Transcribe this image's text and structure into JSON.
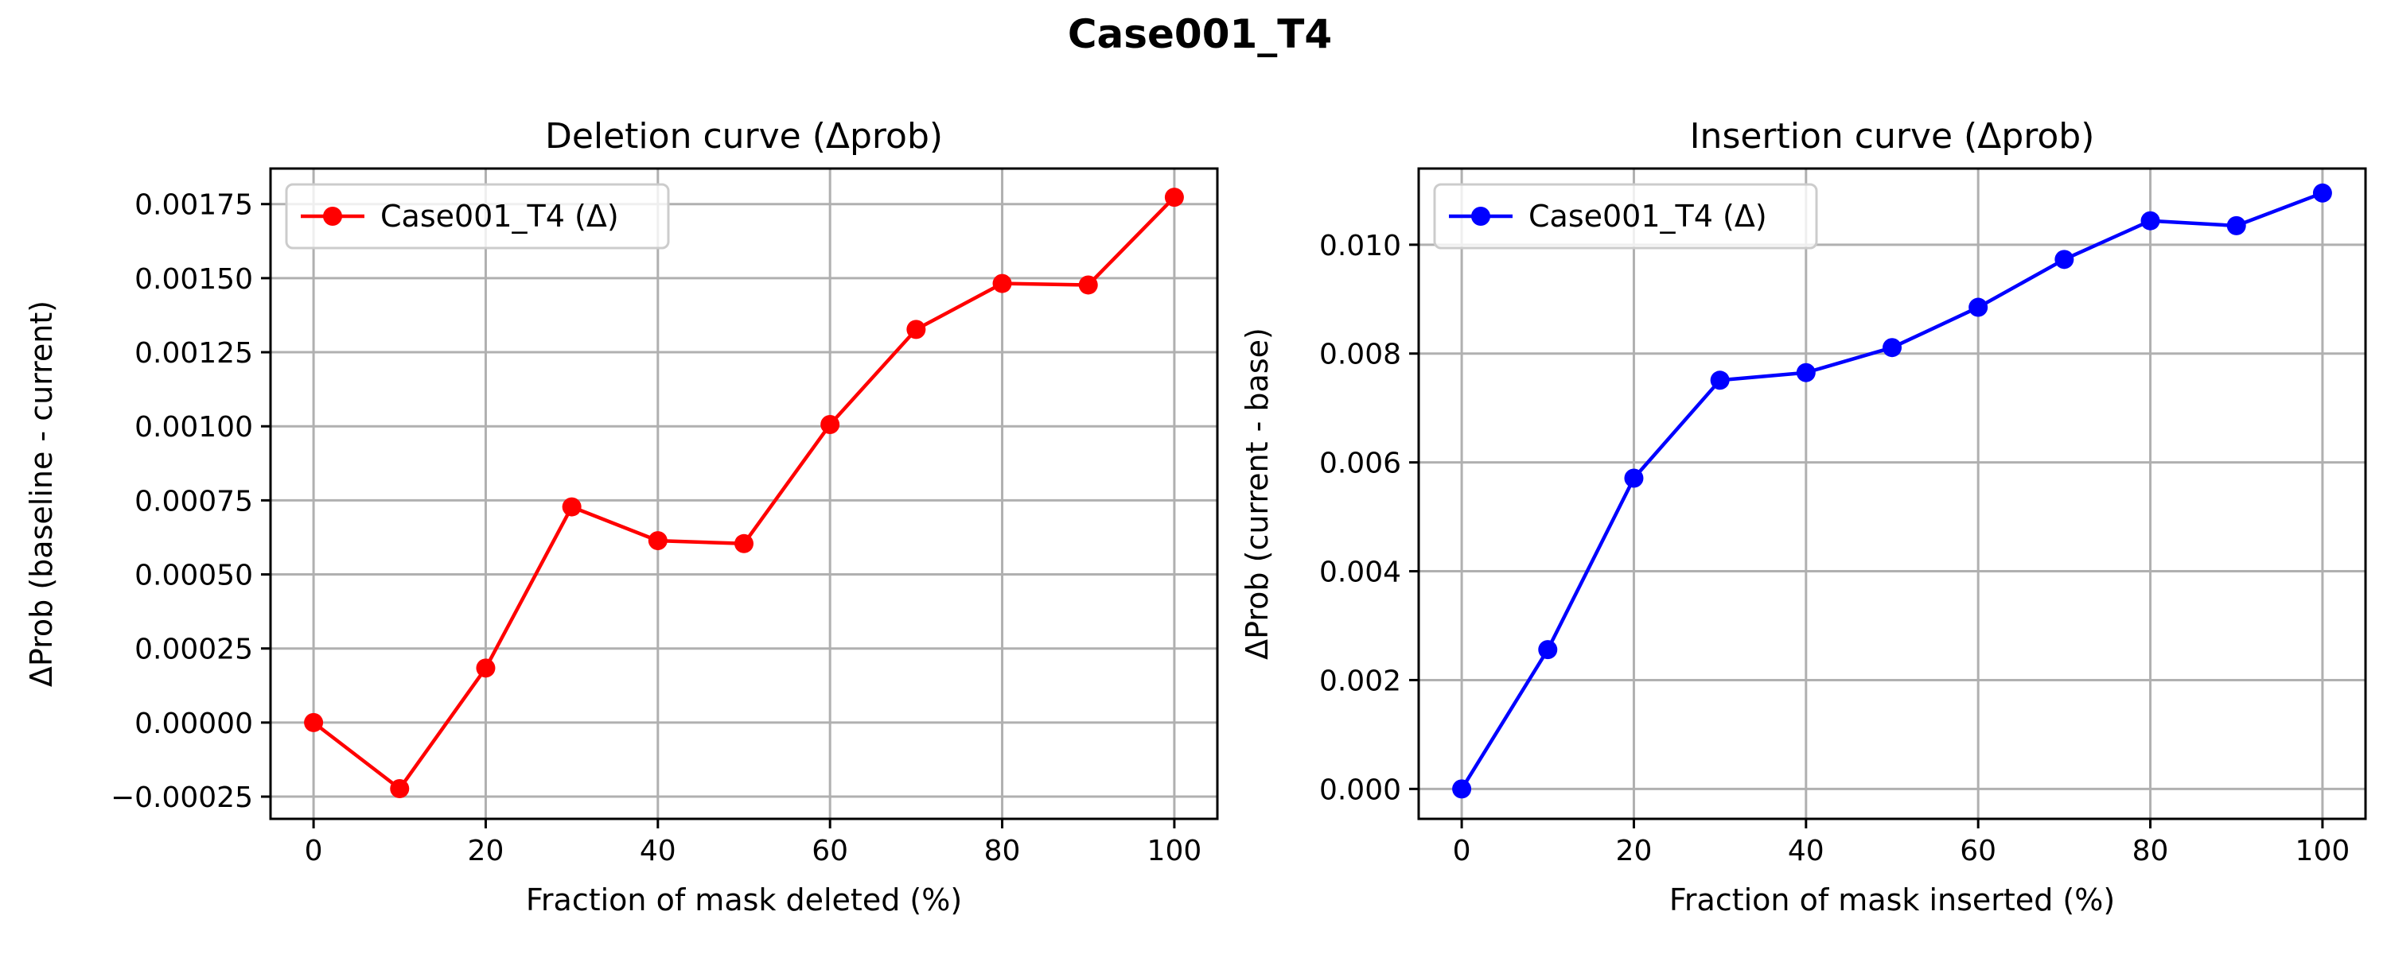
{
  "figure": {
    "title": "Case001_T4"
  },
  "chart_data": [
    {
      "type": "line",
      "title": "Deletion curve (Δprob)",
      "xlabel": "Fraction of mask deleted (%)",
      "ylabel": "ΔProb (baseline - current)",
      "xlim": [
        -5,
        105
      ],
      "ylim": [
        -0.000325,
        0.00187
      ],
      "xticks": [
        0,
        20,
        40,
        60,
        80,
        100
      ],
      "xtick_labels": [
        "0",
        "20",
        "40",
        "60",
        "80",
        "100"
      ],
      "yticks": [
        -0.00025,
        0,
        0.00025,
        0.0005,
        0.00075,
        0.001,
        0.00125,
        0.0015,
        0.00175
      ],
      "ytick_labels": [
        "−0.00025",
        "0.00000",
        "0.00025",
        "0.00050",
        "0.00075",
        "0.00100",
        "0.00125",
        "0.00150",
        "0.00175"
      ],
      "grid": true,
      "legend_position": "top-left",
      "series": [
        {
          "name": "Case001_T4 (Δ)",
          "color": "#ff0000",
          "marker": "circle",
          "x": [
            0,
            10,
            20,
            30,
            40,
            50,
            60,
            70,
            80,
            90,
            100
          ],
          "y": [
            0.0,
            -0.000223,
            0.000184,
            0.000728,
            0.000614,
            0.000604,
            0.001006,
            0.001327,
            0.001482,
            0.001477,
            0.001773
          ]
        }
      ]
    },
    {
      "type": "line",
      "title": "Insertion curve (Δprob)",
      "xlabel": "Fraction of mask inserted (%)",
      "ylabel": "ΔProb (current - base)",
      "xlim": [
        -5,
        105
      ],
      "ylim": [
        -0.00055,
        0.0114
      ],
      "xticks": [
        0,
        20,
        40,
        60,
        80,
        100
      ],
      "xtick_labels": [
        "0",
        "20",
        "40",
        "60",
        "80",
        "100"
      ],
      "yticks": [
        0,
        0.002,
        0.004,
        0.006,
        0.008,
        0.01
      ],
      "ytick_labels": [
        "0.000",
        "0.002",
        "0.004",
        "0.006",
        "0.008",
        "0.010"
      ],
      "grid": true,
      "legend_position": "top-left",
      "series": [
        {
          "name": "Case001_T4 (Δ)",
          "color": "#0000ff",
          "marker": "circle",
          "x": [
            0,
            10,
            20,
            30,
            40,
            50,
            60,
            70,
            80,
            90,
            100
          ],
          "y": [
            0.0,
            0.00256,
            0.00571,
            0.00751,
            0.00765,
            0.00811,
            0.00885,
            0.00973,
            0.01044,
            0.01035,
            0.01095
          ]
        }
      ]
    }
  ]
}
